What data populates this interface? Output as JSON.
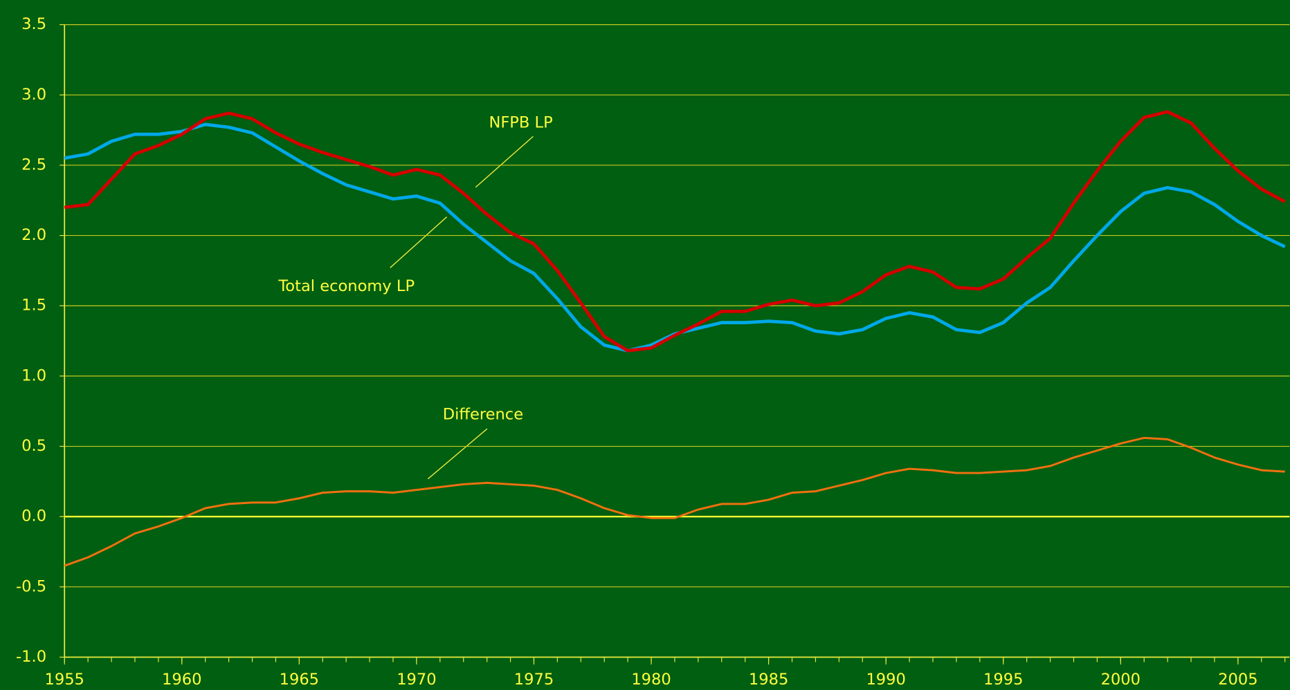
{
  "chart_data": {
    "type": "line",
    "x": [
      1955,
      1956,
      1957,
      1958,
      1959,
      1960,
      1961,
      1962,
      1963,
      1964,
      1965,
      1966,
      1967,
      1968,
      1969,
      1970,
      1971,
      1972,
      1973,
      1974,
      1975,
      1976,
      1977,
      1978,
      1979,
      1980,
      1981,
      1982,
      1983,
      1984,
      1985,
      1986,
      1987,
      1988,
      1989,
      1990,
      1991,
      1992,
      1993,
      1994,
      1995,
      1996,
      1997,
      1998,
      1999,
      2000,
      2001,
      2002,
      2003,
      2004,
      2005,
      2006,
      2007
    ],
    "series": [
      {
        "color": "#00a8e8",
        "values": [
          2.55,
          2.58,
          2.67,
          2.72,
          2.72,
          2.74,
          2.79,
          2.77,
          2.73,
          2.63,
          2.53,
          2.44,
          2.36,
          2.31,
          2.26,
          2.28,
          2.23,
          2.08,
          1.95,
          1.82,
          1.73,
          1.55,
          1.35,
          1.22,
          1.18,
          1.22,
          1.3,
          1.34,
          1.38,
          1.38,
          1.39,
          1.38,
          1.32,
          1.3,
          1.33,
          1.41,
          1.45,
          1.42,
          1.33,
          1.31,
          1.38,
          1.52,
          1.63,
          1.82,
          2.0,
          2.17,
          2.3,
          2.34,
          2.31,
          2.22,
          2.1,
          2.0,
          1.92
        ]
      },
      {
        "color": "#d40000",
        "values": [
          2.2,
          2.22,
          2.4,
          2.58,
          2.64,
          2.72,
          2.83,
          2.87,
          2.83,
          2.73,
          2.65,
          2.59,
          2.54,
          2.49,
          2.43,
          2.47,
          2.43,
          2.3,
          2.15,
          2.02,
          1.94,
          1.75,
          1.52,
          1.28,
          1.18,
          1.2,
          1.29,
          1.37,
          1.46,
          1.46,
          1.51,
          1.54,
          1.5,
          1.52,
          1.6,
          1.72,
          1.78,
          1.74,
          1.63,
          1.62,
          1.69,
          1.84,
          1.98,
          2.23,
          2.46,
          2.67,
          2.84,
          2.88,
          2.8,
          2.62,
          2.46,
          2.33,
          2.24
        ]
      },
      {
        "color": "#f07010",
        "values": [
          -0.35,
          -0.29,
          -0.21,
          -0.12,
          -0.07,
          -0.01,
          0.06,
          0.09,
          0.1,
          0.1,
          0.13,
          0.17,
          0.18,
          0.18,
          0.17,
          0.19,
          0.21,
          0.23,
          0.24,
          0.23,
          0.22,
          0.19,
          0.13,
          0.06,
          0.01,
          -0.01,
          -0.01,
          0.05,
          0.09,
          0.09,
          0.12,
          0.17,
          0.18,
          0.22,
          0.26,
          0.31,
          0.34,
          0.33,
          0.31,
          0.31,
          0.32,
          0.33,
          0.36,
          0.42,
          0.47,
          0.52,
          0.56,
          0.55,
          0.49,
          0.42,
          0.37,
          0.33,
          0.32
        ]
      }
    ],
    "annotations": [
      "NFPB LP",
      "Total economy LP",
      "Difference"
    ],
    "xlim": [
      1955,
      2007.2
    ],
    "xticks": [
      1955,
      1960,
      1965,
      1970,
      1975,
      1980,
      1985,
      1990,
      1995,
      2000,
      2005
    ],
    "ylim": [
      -1.0,
      3.5
    ],
    "yticks": [
      {
        "value": -1,
        "label": "-1.0"
      },
      {
        "value": -0.5,
        "label": "-0.5"
      },
      {
        "value": 0,
        "label": "0.0"
      },
      {
        "value": 0.5,
        "label": "0.5"
      },
      {
        "value": 1,
        "label": "1.0"
      },
      {
        "value": 1.5,
        "label": "1.5"
      },
      {
        "value": 2,
        "label": "2.0"
      },
      {
        "value": 2.5,
        "label": "2.5"
      },
      {
        "value": 3,
        "label": "3.0"
      },
      {
        "value": 3.5,
        "label": "3.5"
      }
    ],
    "grid": true
  }
}
